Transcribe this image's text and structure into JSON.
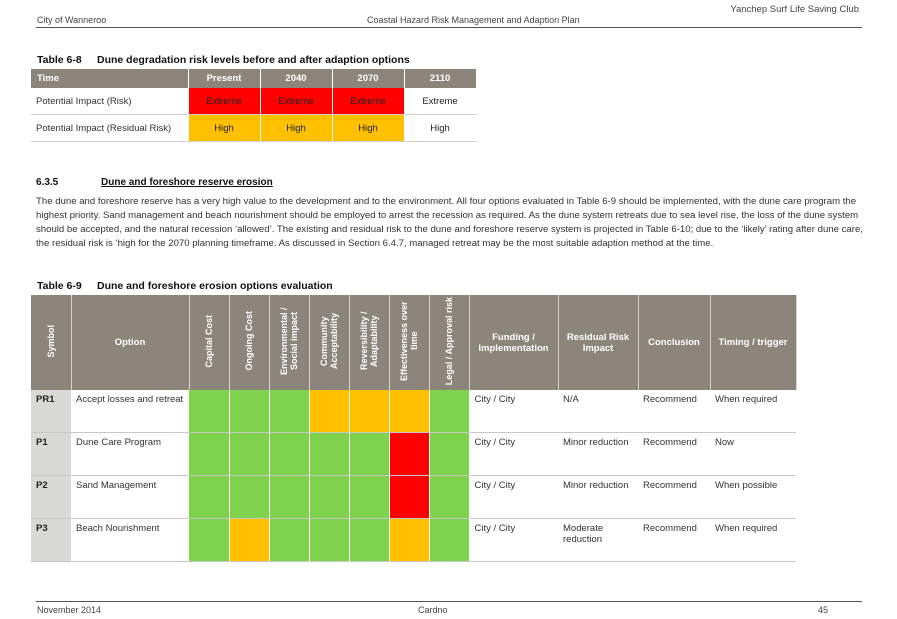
{
  "header": {
    "right": "Yanchep Surf Life Saving Club",
    "left": "City of Wanneroo",
    "center": "Coastal Hazard Risk Management and Adaption Plan"
  },
  "table8": {
    "number": "Table 6-8",
    "title": "Dune degradation risk levels before and after adaption options",
    "columns": [
      "Time",
      "Present",
      "2040",
      "2070",
      "2110"
    ],
    "rows": [
      {
        "label": "Potential Impact (Risk)",
        "cells": [
          {
            "text": "Extreme",
            "color": "#ff0000"
          },
          {
            "text": "Extreme",
            "color": "#ff0000"
          },
          {
            "text": "Extreme",
            "color": "#ff0000"
          },
          {
            "text": "Extreme",
            "color": "#ffffff"
          }
        ]
      },
      {
        "label": "Potential Impact (Residual Risk)",
        "cells": [
          {
            "text": "High",
            "color": "#ffc000"
          },
          {
            "text": "High",
            "color": "#ffc000"
          },
          {
            "text": "High",
            "color": "#ffc000"
          },
          {
            "text": "High",
            "color": "#ffffff"
          }
        ]
      }
    ]
  },
  "section": {
    "number": "6.3.5",
    "title": "Dune and foreshore reserve erosion",
    "paragraph": "The dune and foreshore reserve has a very high value to the development and to the environment. All four options evaluated in Table 6-9 should be implemented, with the dune care program the highest priority. Sand management and beach nourishment should be employed to arrest the recession as required. As the dune system retreats due to sea level rise, the loss of the dune system should be accepted, and the natural recession ‘allowed’. The existing and residual risk to the dune and foreshore reserve system is projected in Table 6-10; due to the ‘likely’ rating after dune care, the residual risk is ‘high for the 2070 planning timeframe. As discussed in Section 6.4.7, managed retreat may be the most suitable adaption method at the time."
  },
  "table9": {
    "number": "Table 6-9",
    "title": "Dune and foreshore erosion options evaluation",
    "headers": {
      "symbol": "Symbol",
      "option": "Option",
      "criteria": [
        "Capital Cost",
        "Ongoing Cost",
        "Environmental / Social impact",
        "Community Acceptability",
        "Reversibility / Adaptability",
        "Effectiveness over time",
        "Legal / Approval risk"
      ],
      "funding": "Funding / Implementation",
      "residual": "Residual Risk Impact",
      "conclusion": "Conclusion",
      "timing": "Timing / trigger"
    },
    "colors": {
      "green": "#7ed24c",
      "orange": "#ffc000",
      "red": "#ff0000"
    },
    "rows": [
      {
        "symbol": "PR1",
        "option": "Accept losses and retreat",
        "ratings": [
          "green",
          "green",
          "green",
          "orange",
          "orange",
          "orange",
          "green"
        ],
        "funding": "City / City",
        "residual": "N/A",
        "conclusion": "Recommend",
        "timing": "When required"
      },
      {
        "symbol": "P1",
        "option": "Dune Care Program",
        "ratings": [
          "green",
          "green",
          "green",
          "green",
          "green",
          "red",
          "green"
        ],
        "funding": "City / City",
        "residual": "Minor reduction",
        "conclusion": "Recommend",
        "timing": "Now"
      },
      {
        "symbol": "P2",
        "option": "Sand Management",
        "ratings": [
          "green",
          "green",
          "green",
          "green",
          "green",
          "red",
          "green"
        ],
        "funding": "City / City",
        "residual": "Minor reduction",
        "conclusion": "Recommend",
        "timing": "When possible"
      },
      {
        "symbol": "P3",
        "option": "Beach Nourishment",
        "ratings": [
          "green",
          "orange",
          "green",
          "green",
          "green",
          "orange",
          "green"
        ],
        "funding": "City / City",
        "residual": "Moderate reduction",
        "conclusion": "Recommend",
        "timing": "When required"
      }
    ]
  },
  "footer": {
    "left": "November 2014",
    "center": "Cardno",
    "right": "45"
  }
}
